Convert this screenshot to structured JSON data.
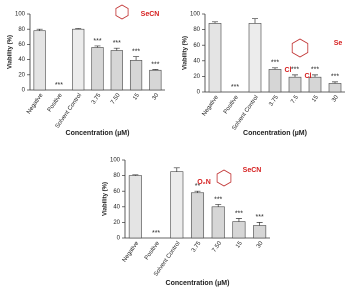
{
  "chart_data": [
    {
      "type": "bar",
      "y_label": "Viability (%)",
      "x_label": "Concentration (µM)",
      "categories": [
        "Negative",
        "Positive",
        "Solvent Control",
        "3.75",
        "7.50",
        "15",
        "30"
      ],
      "values": [
        78,
        0,
        80,
        56,
        52,
        39,
        26
      ],
      "errors": [
        2,
        0,
        1,
        2,
        3,
        5,
        1
      ],
      "annotations": [
        null,
        "***",
        null,
        "***",
        "***",
        "***",
        "***"
      ],
      "colors": [
        "#e4e4e4",
        "#e4e4e4",
        "#ececec",
        "#d6d6d6",
        "#d6d6d6",
        "#d6d6d6",
        "#d6d6d6"
      ],
      "ylim": [
        0,
        100
      ],
      "yticks": [
        0,
        20,
        40,
        60,
        80,
        100
      ],
      "structure_labels": [
        "SeCN"
      ]
    },
    {
      "type": "bar",
      "y_label": "Viability (%)",
      "x_label": "Concentration (µM)",
      "categories": [
        "Negative",
        "Positive",
        "Solvent Control",
        "3.75",
        "7.5",
        "15",
        "30"
      ],
      "values": [
        88,
        0,
        88,
        29,
        19,
        19,
        11
      ],
      "errors": [
        2,
        0,
        6,
        2,
        3,
        3,
        2
      ],
      "annotations": [
        null,
        "***",
        null,
        "***",
        "***",
        "***",
        "***"
      ],
      "colors": [
        "#e4e4e4",
        "#e4e4e4",
        "#ececec",
        "#d6d6d6",
        "#d6d6d6",
        "#d6d6d6",
        "#d6d6d6"
      ],
      "ylim": [
        0,
        100
      ],
      "yticks": [
        0,
        20,
        40,
        60,
        80,
        100
      ],
      "structure_labels": [
        "Cl",
        "Cl",
        "Se"
      ]
    },
    {
      "type": "bar",
      "y_label": "Viability (%)",
      "x_label": "Concentration (µM)",
      "categories": [
        "Negative",
        "Positive",
        "Solvent Control",
        "3.75",
        "7.50",
        "15",
        "30"
      ],
      "values": [
        80,
        0,
        85,
        58,
        40,
        21,
        16
      ],
      "errors": [
        1,
        0,
        5,
        2,
        3,
        4,
        4
      ],
      "annotations": [
        null,
        "***",
        null,
        "**",
        "***",
        "***",
        "***"
      ],
      "colors": [
        "#e4e4e4",
        "#e4e4e4",
        "#ececec",
        "#d6d6d6",
        "#d6d6d6",
        "#d6d6d6",
        "#d6d6d6"
      ],
      "ylim": [
        0,
        100
      ],
      "yticks": [
        0,
        20,
        40,
        60,
        80,
        100
      ],
      "structure_labels": [
        "O₂N",
        "SeCN"
      ]
    }
  ]
}
